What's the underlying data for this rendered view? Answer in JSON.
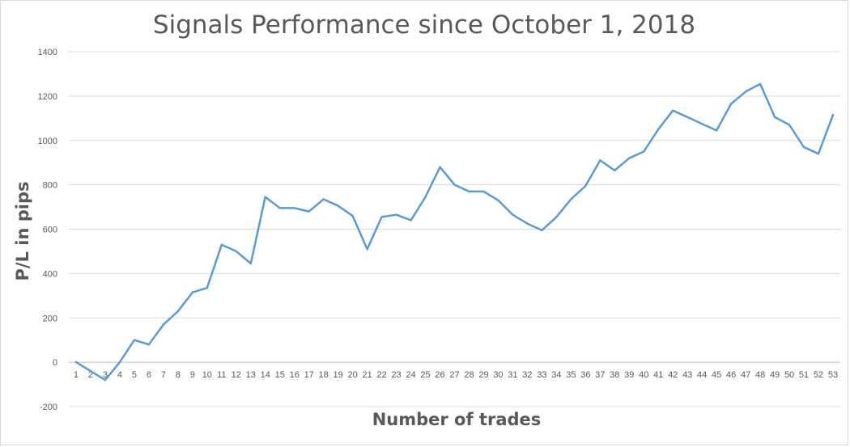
{
  "chart_data": {
    "type": "line",
    "title": "Signals Performance since October 1, 2018",
    "xlabel": "Number of trades",
    "ylabel": "P/L in pips",
    "ylim": [
      -200,
      1400
    ],
    "yticks": [
      -200,
      0,
      200,
      400,
      600,
      800,
      1000,
      1200,
      1400
    ],
    "grid": true,
    "legend": "none",
    "categories": [
      "1",
      "2",
      "3",
      "4",
      "5",
      "6",
      "7",
      "8",
      "9",
      "10",
      "11",
      "12",
      "13",
      "14",
      "15",
      "16",
      "17",
      "18",
      "19",
      "20",
      "21",
      "22",
      "23",
      "24",
      "25",
      "26",
      "27",
      "28",
      "29",
      "30",
      "31",
      "32",
      "33",
      "34",
      "35",
      "36",
      "37",
      "38",
      "39",
      "40",
      "41",
      "42",
      "43",
      "44",
      "45",
      "46",
      "47",
      "48",
      "49",
      "50",
      "51",
      "52",
      "53"
    ],
    "series": [
      {
        "color": "#5b9bd5",
        "values": [
          0,
          -40,
          -80,
          0,
          100,
          80,
          170,
          230,
          315,
          335,
          530,
          500,
          445,
          745,
          695,
          695,
          680,
          735,
          705,
          660,
          510,
          655,
          665,
          640,
          745,
          880,
          800,
          770,
          770,
          730,
          665,
          625,
          595,
          655,
          735,
          795,
          910,
          865,
          920,
          950,
          1050,
          1135,
          1105,
          1075,
          1045,
          1165,
          1220,
          1255,
          1105,
          1070,
          970,
          940,
          1115
        ]
      }
    ]
  }
}
